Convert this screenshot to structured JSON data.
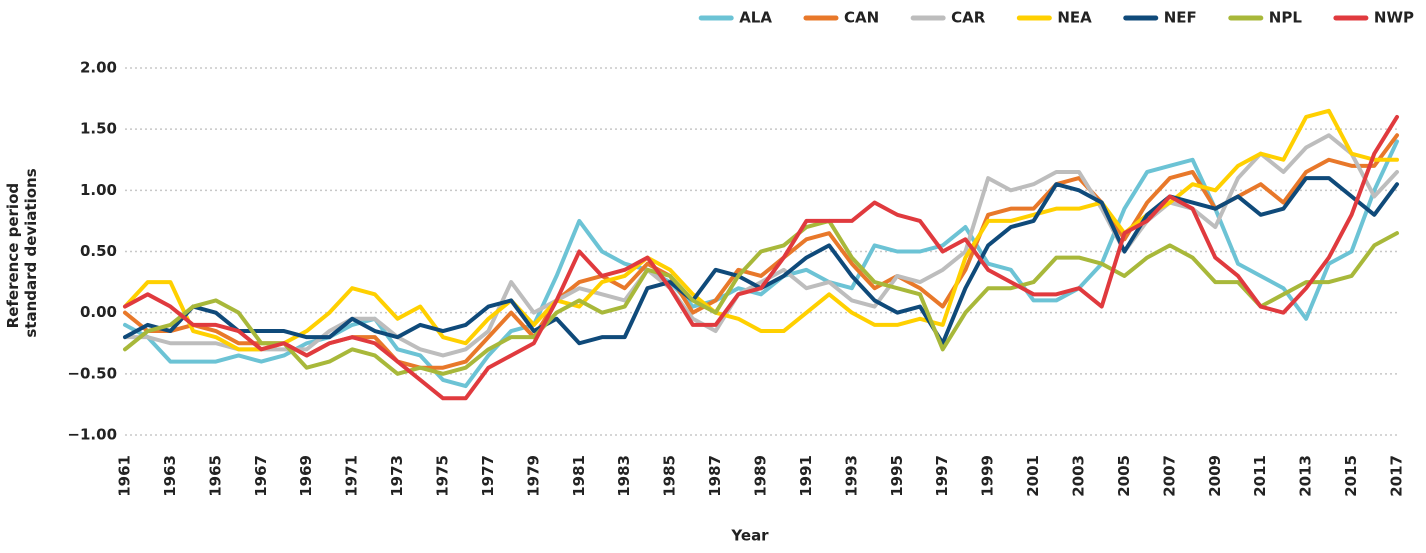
{
  "chart_data": {
    "type": "line",
    "x_label": "Year",
    "y_label": [
      "Reference period",
      "standard deviations"
    ],
    "xlim": [
      1961,
      2017
    ],
    "ylim": [
      -1,
      2
    ],
    "xticks": [
      1961,
      1963,
      1965,
      1967,
      1969,
      1971,
      1973,
      1975,
      1977,
      1979,
      1981,
      1983,
      1985,
      1987,
      1989,
      1991,
      1993,
      1995,
      1997,
      1999,
      2001,
      2003,
      2005,
      2007,
      2009,
      2011,
      2013,
      2015,
      2017
    ],
    "yticks": [
      {
        "value": 2,
        "label": "2.00"
      },
      {
        "value": 1.5,
        "label": "1.50"
      },
      {
        "value": 1,
        "label": "1.00"
      },
      {
        "value": 0.5,
        "label": "0.50"
      },
      {
        "value": 0,
        "label": "0.00"
      },
      {
        "value": -0.5,
        "label": "−0.50"
      },
      {
        "value": -1,
        "label": "−1.00"
      }
    ],
    "grid": true,
    "legend": "top-right",
    "x": [
      1961,
      1962,
      1963,
      1964,
      1965,
      1966,
      1967,
      1968,
      1969,
      1970,
      1971,
      1972,
      1973,
      1974,
      1975,
      1976,
      1977,
      1978,
      1979,
      1980,
      1981,
      1982,
      1983,
      1984,
      1985,
      1986,
      1987,
      1988,
      1989,
      1990,
      1991,
      1992,
      1993,
      1994,
      1995,
      1996,
      1997,
      1998,
      1999,
      2000,
      2001,
      2002,
      2003,
      2004,
      2005,
      2006,
      2007,
      2008,
      2009,
      2010,
      2011,
      2012,
      2013,
      2014,
      2015,
      2016,
      2017
    ],
    "series": [
      {
        "name": "ALA",
        "color": "#6cc3d5",
        "values": [
          -0.1,
          -0.2,
          -0.4,
          -0.4,
          -0.4,
          -0.35,
          -0.4,
          -0.35,
          -0.25,
          -0.2,
          -0.1,
          -0.05,
          -0.3,
          -0.35,
          -0.55,
          -0.6,
          -0.35,
          -0.15,
          -0.1,
          0.3,
          0.75,
          0.5,
          0.4,
          0.35,
          0.25,
          0.05,
          0.1,
          0.2,
          0.15,
          0.3,
          0.35,
          0.25,
          0.2,
          0.55,
          0.5,
          0.5,
          0.55,
          0.7,
          0.4,
          0.35,
          0.1,
          0.1,
          0.2,
          0.4,
          0.85,
          1.15,
          1.2,
          1.25,
          0.85,
          0.4,
          0.3,
          0.2,
          -0.05,
          0.4,
          0.5,
          1.0,
          1.4
        ]
      },
      {
        "name": "CAN",
        "color": "#e8782a",
        "values": [
          0,
          -0.15,
          -0.15,
          -0.1,
          -0.15,
          -0.25,
          -0.25,
          -0.25,
          -0.35,
          -0.25,
          -0.2,
          -0.2,
          -0.4,
          -0.45,
          -0.45,
          -0.4,
          -0.2,
          0,
          -0.2,
          0.1,
          0.25,
          0.3,
          0.2,
          0.4,
          0.3,
          0,
          0.1,
          0.35,
          0.3,
          0.45,
          0.6,
          0.65,
          0.4,
          0.2,
          0.3,
          0.2,
          0.05,
          0.35,
          0.8,
          0.85,
          0.85,
          1.05,
          1.1,
          0.9,
          0.6,
          0.9,
          1.1,
          1.15,
          0.85,
          0.95,
          1.05,
          0.9,
          1.15,
          1.25,
          1.2,
          1.2,
          1.45
        ]
      },
      {
        "name": "CAR",
        "color": "#bdbdbd",
        "values": [
          -0.2,
          -0.2,
          -0.25,
          -0.25,
          -0.25,
          -0.3,
          -0.3,
          -0.3,
          -0.3,
          -0.15,
          -0.05,
          -0.05,
          -0.2,
          -0.3,
          -0.35,
          -0.3,
          -0.15,
          0.25,
          0,
          0.1,
          0.2,
          0.15,
          0.1,
          0.35,
          0.2,
          -0.05,
          -0.15,
          0.15,
          0.25,
          0.35,
          0.2,
          0.25,
          0.1,
          0.05,
          0.3,
          0.25,
          0.35,
          0.5,
          1.1,
          1.0,
          1.05,
          1.15,
          1.15,
          0.85,
          0.5,
          0.75,
          0.9,
          0.85,
          0.7,
          1.1,
          1.3,
          1.15,
          1.35,
          1.45,
          1.3,
          0.95,
          1.15
        ]
      },
      {
        "name": "NEA",
        "color": "#ffd000",
        "values": [
          0.05,
          0.25,
          0.25,
          -0.15,
          -0.2,
          -0.3,
          -0.3,
          -0.25,
          -0.15,
          0,
          0.2,
          0.15,
          -0.05,
          0.05,
          -0.2,
          -0.25,
          -0.05,
          0.1,
          -0.1,
          0.1,
          0.05,
          0.25,
          0.3,
          0.45,
          0.35,
          0.15,
          0,
          -0.05,
          -0.15,
          -0.15,
          0,
          0.15,
          0,
          -0.1,
          -0.1,
          -0.05,
          -0.1,
          0.45,
          0.75,
          0.75,
          0.8,
          0.85,
          0.85,
          0.9,
          0.65,
          0.8,
          0.9,
          1.05,
          1.0,
          1.2,
          1.3,
          1.25,
          1.6,
          1.65,
          1.3,
          1.25,
          1.25
        ]
      },
      {
        "name": "NEF",
        "color": "#0f4a7a",
        "values": [
          -0.2,
          -0.1,
          -0.15,
          0.05,
          0,
          -0.15,
          -0.15,
          -0.15,
          -0.2,
          -0.2,
          -0.05,
          -0.15,
          -0.2,
          -0.1,
          -0.15,
          -0.1,
          0.05,
          0.1,
          -0.15,
          -0.05,
          -0.25,
          -0.2,
          -0.2,
          0.2,
          0.25,
          0.1,
          0.35,
          0.3,
          0.2,
          0.3,
          0.45,
          0.55,
          0.3,
          0.1,
          0,
          0.05,
          -0.25,
          0.2,
          0.55,
          0.7,
          0.75,
          1.05,
          1.0,
          0.9,
          0.5,
          0.8,
          0.95,
          0.9,
          0.85,
          0.95,
          0.8,
          0.85,
          1.1,
          1.1,
          0.95,
          0.8,
          1.05
        ]
      },
      {
        "name": "NPL",
        "color": "#a8b83a",
        "values": [
          -0.3,
          -0.15,
          -0.1,
          0.05,
          0.1,
          0,
          -0.25,
          -0.25,
          -0.45,
          -0.4,
          -0.3,
          -0.35,
          -0.5,
          -0.45,
          -0.5,
          -0.45,
          -0.3,
          -0.2,
          -0.2,
          0,
          0.1,
          0,
          0.05,
          0.35,
          0.3,
          0.1,
          0,
          0.3,
          0.5,
          0.55,
          0.7,
          0.75,
          0.45,
          0.25,
          0.2,
          0.15,
          -0.3,
          0,
          0.2,
          0.2,
          0.25,
          0.45,
          0.45,
          0.4,
          0.3,
          0.45,
          0.55,
          0.45,
          0.25,
          0.25,
          0.05,
          0.15,
          0.25,
          0.25,
          0.3,
          0.55,
          0.65
        ]
      },
      {
        "name": "NWP",
        "color": "#e03a3e",
        "values": [
          0.05,
          0.15,
          0.05,
          -0.1,
          -0.1,
          -0.15,
          -0.3,
          -0.25,
          -0.35,
          -0.25,
          -0.2,
          -0.25,
          -0.4,
          -0.55,
          -0.7,
          -0.7,
          -0.45,
          -0.35,
          -0.25,
          0.1,
          0.5,
          0.3,
          0.35,
          0.45,
          0.2,
          -0.1,
          -0.1,
          0.15,
          0.2,
          0.45,
          0.75,
          0.75,
          0.75,
          0.9,
          0.8,
          0.75,
          0.5,
          0.6,
          0.35,
          0.25,
          0.15,
          0.15,
          0.2,
          0.05,
          0.65,
          0.75,
          0.95,
          0.85,
          0.45,
          0.3,
          0.05,
          0,
          0.2,
          0.45,
          0.8,
          1.3,
          1.6
        ]
      }
    ]
  }
}
